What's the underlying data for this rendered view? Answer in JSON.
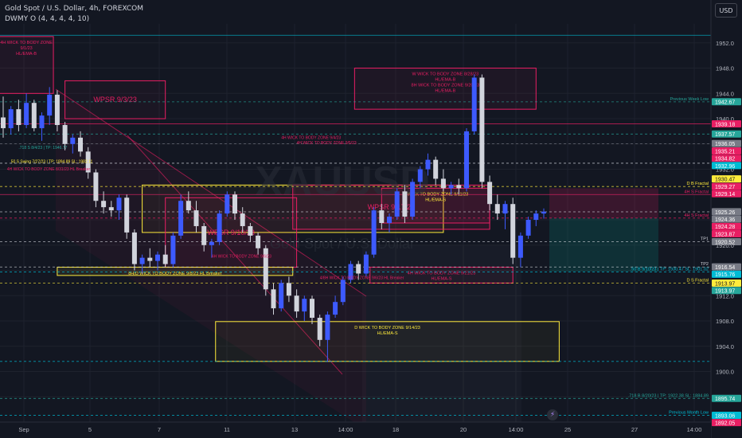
{
  "header": {
    "symbol_line": "Gold Spot / U.S. Dollar, 4h, FOREXCOM",
    "indicator_line": "DWMY O (4, 4, 4, 4, 10)",
    "currency_button": "USD"
  },
  "colors": {
    "background": "#131722",
    "bull": "#3d5afe",
    "bear": "#d1d4dc",
    "pink": "#e91e63",
    "yellow": "#ffeb3b",
    "teal": "#00bcd4",
    "grid": "#1e222d"
  },
  "watermark": {
    "symbol": "XAUUSD",
    "name": "Gold Spot / U.S. Dollar"
  },
  "chart_data": {
    "type": "candlestick",
    "ylim": [
      1892,
      1955
    ],
    "x_ticks": [
      "Sep",
      "5",
      "7",
      "11",
      "13",
      "14:00",
      "18",
      "20",
      "14:00",
      "25",
      "27",
      "14:00"
    ],
    "price_ticks": [
      1952,
      1948,
      1944,
      1940,
      1936,
      1932,
      1928,
      1924,
      1920,
      1916,
      1912,
      1908,
      1904,
      1900,
      1896
    ],
    "candles": [
      {
        "o": 1940.2,
        "h": 1943.5,
        "l": 1937.0,
        "c": 1938.5
      },
      {
        "o": 1938.5,
        "h": 1942.0,
        "l": 1937.5,
        "c": 1941.5
      },
      {
        "o": 1941.5,
        "h": 1943.0,
        "l": 1938.0,
        "c": 1939.0
      },
      {
        "o": 1939.0,
        "h": 1944.0,
        "l": 1938.5,
        "c": 1942.5
      },
      {
        "o": 1942.5,
        "h": 1943.0,
        "l": 1938.0,
        "c": 1938.5
      },
      {
        "o": 1938.5,
        "h": 1941.0,
        "l": 1936.5,
        "c": 1940.5
      },
      {
        "o": 1940.5,
        "h": 1945.0,
        "l": 1939.0,
        "c": 1943.8
      },
      {
        "o": 1943.8,
        "h": 1944.5,
        "l": 1938.0,
        "c": 1939.0
      },
      {
        "o": 1939.0,
        "h": 1939.5,
        "l": 1935.0,
        "c": 1936.0
      },
      {
        "o": 1936.0,
        "h": 1937.5,
        "l": 1934.5,
        "c": 1937.0
      },
      {
        "o": 1937.0,
        "h": 1938.0,
        "l": 1934.0,
        "c": 1934.8
      },
      {
        "o": 1934.8,
        "h": 1935.5,
        "l": 1930.5,
        "c": 1931.5
      },
      {
        "o": 1931.5,
        "h": 1932.0,
        "l": 1926.0,
        "c": 1927.0
      },
      {
        "o": 1927.0,
        "h": 1928.5,
        "l": 1925.0,
        "c": 1926.0
      },
      {
        "o": 1926.0,
        "h": 1927.0,
        "l": 1924.5,
        "c": 1925.5
      },
      {
        "o": 1925.5,
        "h": 1928.0,
        "l": 1924.0,
        "c": 1927.5
      },
      {
        "o": 1927.5,
        "h": 1928.0,
        "l": 1921.0,
        "c": 1922.0
      },
      {
        "o": 1922.0,
        "h": 1922.5,
        "l": 1916.0,
        "c": 1917.0
      },
      {
        "o": 1917.0,
        "h": 1918.5,
        "l": 1915.5,
        "c": 1918.0
      },
      {
        "o": 1918.0,
        "h": 1919.5,
        "l": 1916.5,
        "c": 1917.5
      },
      {
        "o": 1917.5,
        "h": 1919.0,
        "l": 1916.0,
        "c": 1918.5
      },
      {
        "o": 1918.5,
        "h": 1920.0,
        "l": 1916.5,
        "c": 1917.0
      },
      {
        "o": 1917.0,
        "h": 1922.0,
        "l": 1916.5,
        "c": 1921.5
      },
      {
        "o": 1921.5,
        "h": 1928.0,
        "l": 1921.0,
        "c": 1927.0
      },
      {
        "o": 1927.0,
        "h": 1928.5,
        "l": 1925.0,
        "c": 1925.5
      },
      {
        "o": 1925.5,
        "h": 1927.0,
        "l": 1922.0,
        "c": 1923.0
      },
      {
        "o": 1923.0,
        "h": 1923.5,
        "l": 1919.0,
        "c": 1920.0
      },
      {
        "o": 1920.0,
        "h": 1921.0,
        "l": 1918.0,
        "c": 1920.5
      },
      {
        "o": 1920.5,
        "h": 1925.5,
        "l": 1920.0,
        "c": 1925.0
      },
      {
        "o": 1925.0,
        "h": 1928.5,
        "l": 1924.5,
        "c": 1928.0
      },
      {
        "o": 1928.0,
        "h": 1928.5,
        "l": 1924.0,
        "c": 1925.0
      },
      {
        "o": 1925.0,
        "h": 1926.0,
        "l": 1922.0,
        "c": 1923.0
      },
      {
        "o": 1923.0,
        "h": 1923.5,
        "l": 1920.5,
        "c": 1921.5
      },
      {
        "o": 1921.5,
        "h": 1922.0,
        "l": 1918.5,
        "c": 1919.5
      },
      {
        "o": 1919.5,
        "h": 1920.0,
        "l": 1912.0,
        "c": 1913.0
      },
      {
        "o": 1913.0,
        "h": 1914.0,
        "l": 1909.0,
        "c": 1910.0
      },
      {
        "o": 1910.0,
        "h": 1914.5,
        "l": 1909.5,
        "c": 1914.0
      },
      {
        "o": 1914.0,
        "h": 1915.0,
        "l": 1911.0,
        "c": 1912.0
      },
      {
        "o": 1912.0,
        "h": 1913.0,
        "l": 1908.5,
        "c": 1909.5
      },
      {
        "o": 1909.5,
        "h": 1912.0,
        "l": 1908.0,
        "c": 1911.5
      },
      {
        "o": 1911.5,
        "h": 1912.0,
        "l": 1907.5,
        "c": 1908.5
      },
      {
        "o": 1908.5,
        "h": 1909.0,
        "l": 1904.0,
        "c": 1905.0
      },
      {
        "o": 1905.0,
        "h": 1909.5,
        "l": 1901.5,
        "c": 1909.0
      },
      {
        "o": 1909.0,
        "h": 1912.0,
        "l": 1908.5,
        "c": 1911.0
      },
      {
        "o": 1911.0,
        "h": 1915.0,
        "l": 1910.5,
        "c": 1914.5
      },
      {
        "o": 1914.5,
        "h": 1917.5,
        "l": 1914.0,
        "c": 1917.0
      },
      {
        "o": 1917.0,
        "h": 1917.5,
        "l": 1914.5,
        "c": 1915.5
      },
      {
        "o": 1915.5,
        "h": 1919.0,
        "l": 1915.0,
        "c": 1918.5
      },
      {
        "o": 1918.5,
        "h": 1926.0,
        "l": 1918.0,
        "c": 1925.5
      },
      {
        "o": 1925.5,
        "h": 1926.5,
        "l": 1922.5,
        "c": 1923.5
      },
      {
        "o": 1923.5,
        "h": 1925.0,
        "l": 1922.0,
        "c": 1924.5
      },
      {
        "o": 1924.5,
        "h": 1929.0,
        "l": 1924.0,
        "c": 1928.5
      },
      {
        "o": 1928.5,
        "h": 1929.5,
        "l": 1923.5,
        "c": 1924.5
      },
      {
        "o": 1924.5,
        "h": 1930.5,
        "l": 1924.0,
        "c": 1930.0
      },
      {
        "o": 1930.0,
        "h": 1932.5,
        "l": 1929.0,
        "c": 1932.0
      },
      {
        "o": 1932.0,
        "h": 1934.5,
        "l": 1931.0,
        "c": 1933.5
      },
      {
        "o": 1933.5,
        "h": 1934.0,
        "l": 1929.5,
        "c": 1930.5
      },
      {
        "o": 1930.5,
        "h": 1932.0,
        "l": 1928.5,
        "c": 1929.0
      },
      {
        "o": 1929.0,
        "h": 1930.0,
        "l": 1928.0,
        "c": 1929.5
      },
      {
        "o": 1929.5,
        "h": 1930.5,
        "l": 1928.0,
        "c": 1929.0
      },
      {
        "o": 1929.0,
        "h": 1938.5,
        "l": 1928.5,
        "c": 1938.0
      },
      {
        "o": 1938.0,
        "h": 1947.0,
        "l": 1937.5,
        "c": 1946.5
      },
      {
        "o": 1946.5,
        "h": 1947.0,
        "l": 1929.0,
        "c": 1930.0
      },
      {
        "o": 1930.0,
        "h": 1931.0,
        "l": 1925.5,
        "c": 1926.5
      },
      {
        "o": 1926.5,
        "h": 1928.0,
        "l": 1924.0,
        "c": 1925.0
      },
      {
        "o": 1925.0,
        "h": 1927.0,
        "l": 1922.5,
        "c": 1926.5
      },
      {
        "o": 1926.5,
        "h": 1927.5,
        "l": 1917.0,
        "c": 1918.0
      },
      {
        "o": 1918.0,
        "h": 1922.0,
        "l": 1916.5,
        "c": 1921.5
      },
      {
        "o": 1921.5,
        "h": 1924.5,
        "l": 1921.0,
        "c": 1924.0
      },
      {
        "o": 1924.0,
        "h": 1925.5,
        "l": 1923.0,
        "c": 1925.0
      },
      {
        "o": 1925.0,
        "h": 1925.8,
        "l": 1924.2,
        "c": 1925.3
      }
    ],
    "price_labels": [
      {
        "value": "1942.67",
        "price": 1942.67,
        "color": "#26a69a"
      },
      {
        "value": "1939.18",
        "price": 1939.18,
        "color": "#e91e63"
      },
      {
        "value": "1937.57",
        "price": 1937.57,
        "color": "#26a69a"
      },
      {
        "value": "1936.05",
        "price": 1936.05,
        "color": "#787b86"
      },
      {
        "value": "1935.21",
        "price": 1935.21,
        "color": "#e91e63"
      },
      {
        "value": "1934.82",
        "price": 1934.82,
        "color": "#e91e63"
      },
      {
        "value": "1932.96",
        "price": 1932.96,
        "color": "#00bcd4"
      },
      {
        "value": "1930.47",
        "price": 1930.47,
        "color": "#ffeb3b"
      },
      {
        "value": "1929.27",
        "price": 1929.27,
        "color": "#e91e63"
      },
      {
        "value": "1929.14",
        "price": 1929.14,
        "color": "#e91e63"
      },
      {
        "value": "1925.26",
        "price": 1925.26,
        "color": "#787b86"
      },
      {
        "value": "1924.36",
        "price": 1924.36,
        "color": "#787b86"
      },
      {
        "value": "1924.28",
        "price": 1924.28,
        "color": "#e91e63"
      },
      {
        "value": "1923.87",
        "price": 1923.87,
        "color": "#e91e63"
      },
      {
        "value": "1920.52",
        "price": 1920.52,
        "color": "#787b86"
      },
      {
        "value": "1916.54",
        "price": 1916.54,
        "color": "#787b86"
      },
      {
        "value": "1915.76",
        "price": 1915.76,
        "color": "#00bcd4"
      },
      {
        "value": "1913.97",
        "price": 1913.97,
        "color": "#ffeb3b"
      },
      {
        "value": "1913.97",
        "price": 1913.97,
        "color": "#26a69a"
      },
      {
        "value": "1895.74",
        "price": 1895.74,
        "color": "#26a69a"
      },
      {
        "value": "1893.06",
        "price": 1893.06,
        "color": "#00bcd4"
      },
      {
        "value": "1892.05",
        "price": 1892.05,
        "color": "#e91e63"
      }
    ],
    "hlines": [
      {
        "price": 1953.2,
        "color": "#00bcd4",
        "style": "solid",
        "label": ""
      },
      {
        "price": 1942.67,
        "color": "#26a69a",
        "style": "dash",
        "label": "Previous Week Low"
      },
      {
        "price": 1939.18,
        "color": "#e91e63",
        "style": "solid",
        "label": ""
      },
      {
        "price": 1937.57,
        "color": "#26a69a",
        "style": "dash",
        "label": ""
      },
      {
        "price": 1936.05,
        "color": "#787b86",
        "style": "dash",
        "label": ""
      },
      {
        "price": 1932.96,
        "color": "#d1d4dc",
        "style": "dash",
        "label": ""
      },
      {
        "price": 1929.27,
        "color": "#ffeb3b",
        "style": "dash",
        "label": "D B Fractal"
      },
      {
        "price": 1928.0,
        "color": "#e91e63",
        "style": "solid",
        "label": "4H S Fractal"
      },
      {
        "price": 1925.26,
        "color": "#d1d4dc",
        "style": "dash",
        "label": ""
      },
      {
        "price": 1924.28,
        "color": "#e91e63",
        "style": "dash",
        "label": "4H S Fractal"
      },
      {
        "price": 1920.52,
        "color": "#d1d4dc",
        "style": "dash",
        "label": "TP1"
      },
      {
        "price": 1916.54,
        "color": "#d1d4dc",
        "style": "dash",
        "label": "TP2"
      },
      {
        "price": 1915.76,
        "color": "#00bcd4",
        "style": "dash",
        "label": ".50 B 9/10/23 | TP: 1930.47 SL: 1901.02"
      },
      {
        "price": 1913.97,
        "color": "#ffeb3b",
        "style": "dash",
        "label": "D S Fractal"
      },
      {
        "price": 1901.6,
        "color": "#00bcd4",
        "style": "dash",
        "label": ""
      },
      {
        "price": 1895.74,
        "color": "#26a69a",
        "style": "dash",
        "label": ".718 B 8/20/23 | TP: 1922.38 SL: 1884.89"
      },
      {
        "price": 1893.06,
        "color": "#00bcd4",
        "style": "dash",
        "label": "Previous Month Low"
      }
    ],
    "zones": [
      {
        "bar0": -0.5,
        "bar1": 6.5,
        "top": 1953,
        "bottom": 1944,
        "stroke": "#e91e63",
        "fill": "rgba(233,30,99,0.06)",
        "label": "4H WICK TO BODY ZONE\n9/1/23\nHL/EMA-B",
        "color": "#e91e63"
      },
      {
        "bar0": 8,
        "bar1": 21,
        "top": 1946,
        "bottom": 1940,
        "stroke": "#e91e63",
        "fill": "rgba(233,30,99,0.04)",
        "label": "WPSR 9/3/23",
        "color": "#e91e63"
      },
      {
        "bar0": 18,
        "bar1": 57,
        "top": 1929.5,
        "bottom": 1922,
        "stroke": "#ffeb3b",
        "fill": "rgba(255,235,59,0.03)",
        "label": "",
        "color": "#ffeb3b"
      },
      {
        "bar0": 21,
        "bar1": 38,
        "top": 1927.5,
        "bottom": 1916.5,
        "stroke": "#e91e63",
        "fill": "rgba(233,30,99,0.06)",
        "label": "WPSR 9/10/23",
        "color": "#e91e63"
      },
      {
        "bar0": 7,
        "bar1": 37.5,
        "top": 1916.5,
        "bottom": 1915.2,
        "stroke": "#ffeb3b",
        "fill": "rgba(255,235,59,0.08)",
        "label": "8H/D WICK TO BODY ZONE 9/8/23 HL Breaker",
        "color": "#ffeb3b"
      },
      {
        "bar0": 37.5,
        "bar1": 63,
        "top": 1929.5,
        "bottom": 1922.5,
        "stroke": "#e91e63",
        "fill": "rgba(233,30,99,0.1)",
        "label": "WPSR 9/17/23",
        "color": "#e91e63"
      },
      {
        "bar0": 27.5,
        "bar1": 72,
        "top": 1907.9,
        "bottom": 1901.6,
        "stroke": "#ffeb3b",
        "fill": "rgba(255,235,59,0.04)",
        "label": "D WICK TO BODY ZONE 9/14/23\nHL/EMA-S",
        "color": "#ffeb3b"
      },
      {
        "bar0": 45.5,
        "bar1": 69,
        "top": 1948,
        "bottom": 1941.5,
        "stroke": "#e91e63",
        "fill": "rgba(233,30,99,0.05)",
        "label": "W WICK TO BODY ZONE 8/28/23\nHL/EMA-B\n8H WICK TO BODY ZONE 9/20/23\nHL/EMA-B",
        "color": "#e91e63"
      },
      {
        "bar0": 47.5,
        "bar1": 66,
        "top": 1916.5,
        "bottom": 1914.0,
        "stroke": "#e91e63",
        "fill": "rgba(233,30,99,0.05)",
        "label": "4H WICK TO BODY ZONE 9/21/23\nHL/EMA-S",
        "color": "#e91e63"
      },
      {
        "bar0": 49,
        "bar1": 63,
        "top": 1929,
        "bottom": 1923.5,
        "stroke": "#e91e63",
        "fill": "rgba(233,30,99,0.08)",
        "label": "D WICK TO BODY ZONE 9/11/23\nHL/EMA-S",
        "color": "#ffeb3b"
      }
    ],
    "annotations": [
      {
        "text": "50 S Swing 7/27/23 | TP: 1894.89 SL: 1982.11",
        "bar": 1,
        "price": 1933.0,
        "color": "#ffeb3b"
      },
      {
        "text": "4H WICK TO BODY ZONE 8/31/23 HL Breaker",
        "bar": 0.5,
        "price": 1931.8,
        "color": "#e91e63"
      },
      {
        "text": ".718 S 8/4/23 | TP: 1946.77",
        "bar": 2,
        "price": 1935.2,
        "color": "#26a69a"
      },
      {
        "text": "4H WICK TO BODY ZONE 9/4/23",
        "bar": 36,
        "price": 1936.8,
        "color": "#e91e63"
      },
      {
        "text": "4H WICK TO BODY ZONE 9/5/23",
        "bar": 38,
        "price": 1936.0,
        "color": "#e91e63"
      },
      {
        "text": "4H WICK TO BODY ZONE 9/6/23",
        "bar": 27,
        "price": 1918.0,
        "color": "#e91e63"
      },
      {
        "text": "4/8H WICK TO BODY ZONE 9/6/23 HL Breaker",
        "bar": 41,
        "price": 1914.6,
        "color": "#e91e63"
      }
    ]
  }
}
